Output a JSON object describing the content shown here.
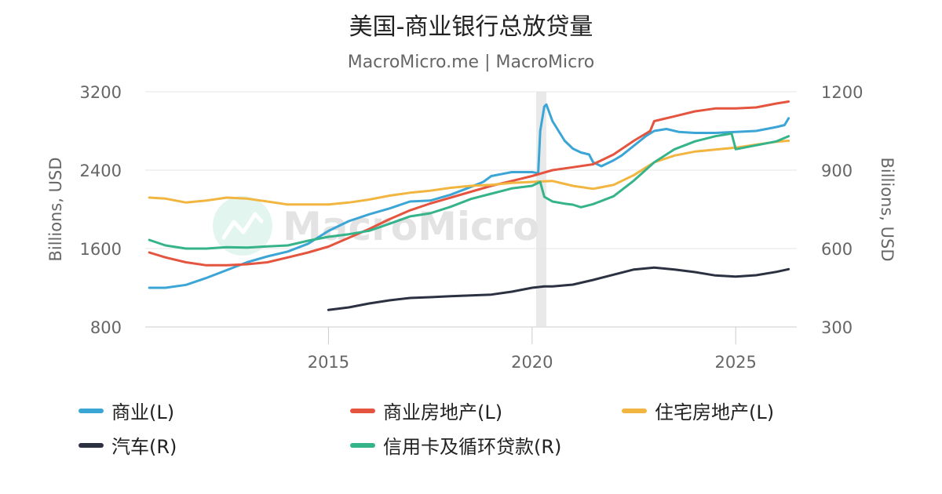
{
  "chart_data": {
    "type": "line",
    "title": "美国-商业银行总放贷量",
    "subtitle": "MacroMicro.me | MacroMicro",
    "watermark": "MacroMicro",
    "left_axis": {
      "label": "Billions, USD",
      "ticks": [
        800,
        1600,
        2400,
        3200
      ],
      "range": [
        800,
        3200
      ]
    },
    "right_axis": {
      "label": "Billions, USD",
      "ticks": [
        300,
        600,
        900,
        1200
      ],
      "range": [
        300,
        1200
      ]
    },
    "x_axis": {
      "ticks": [
        2015,
        2020,
        2025
      ],
      "range": [
        2010.5,
        2026.5
      ]
    },
    "recession_band": [
      2020.1,
      2020.35
    ],
    "series": [
      {
        "name": "商业(L)",
        "axis": "left",
        "color": "#3ba5d6",
        "points": [
          [
            2010.6,
            1200
          ],
          [
            2011.0,
            1200
          ],
          [
            2011.5,
            1230
          ],
          [
            2012.0,
            1300
          ],
          [
            2012.5,
            1380
          ],
          [
            2013.0,
            1460
          ],
          [
            2013.5,
            1520
          ],
          [
            2014.0,
            1570
          ],
          [
            2014.5,
            1650
          ],
          [
            2015.0,
            1780
          ],
          [
            2015.5,
            1880
          ],
          [
            2016.0,
            1950
          ],
          [
            2016.5,
            2010
          ],
          [
            2017.0,
            2080
          ],
          [
            2017.5,
            2090
          ],
          [
            2018.0,
            2150
          ],
          [
            2018.5,
            2230
          ],
          [
            2018.8,
            2280
          ],
          [
            2019.0,
            2340
          ],
          [
            2019.5,
            2380
          ],
          [
            2020.0,
            2380
          ],
          [
            2020.15,
            2370
          ],
          [
            2020.2,
            2800
          ],
          [
            2020.3,
            3050
          ],
          [
            2020.35,
            3070
          ],
          [
            2020.5,
            2900
          ],
          [
            2020.8,
            2700
          ],
          [
            2021.0,
            2620
          ],
          [
            2021.2,
            2580
          ],
          [
            2021.4,
            2560
          ],
          [
            2021.5,
            2480
          ],
          [
            2021.7,
            2440
          ],
          [
            2022.0,
            2500
          ],
          [
            2022.2,
            2550
          ],
          [
            2022.5,
            2650
          ],
          [
            2022.8,
            2750
          ],
          [
            2023.0,
            2800
          ],
          [
            2023.3,
            2820
          ],
          [
            2023.6,
            2790
          ],
          [
            2024.0,
            2780
          ],
          [
            2024.5,
            2780
          ],
          [
            2025.0,
            2790
          ],
          [
            2025.5,
            2800
          ],
          [
            2026.0,
            2840
          ],
          [
            2026.2,
            2860
          ],
          [
            2026.3,
            2930
          ]
        ]
      },
      {
        "name": "商业房地产(L)",
        "axis": "left",
        "color": "#e4543e",
        "points": [
          [
            2010.6,
            1560
          ],
          [
            2011.0,
            1510
          ],
          [
            2011.5,
            1460
          ],
          [
            2012.0,
            1430
          ],
          [
            2012.5,
            1430
          ],
          [
            2013.0,
            1440
          ],
          [
            2013.5,
            1460
          ],
          [
            2014.0,
            1510
          ],
          [
            2014.5,
            1560
          ],
          [
            2015.0,
            1620
          ],
          [
            2015.5,
            1710
          ],
          [
            2016.0,
            1800
          ],
          [
            2016.5,
            1900
          ],
          [
            2017.0,
            1990
          ],
          [
            2017.5,
            2060
          ],
          [
            2018.0,
            2120
          ],
          [
            2018.5,
            2180
          ],
          [
            2019.0,
            2240
          ],
          [
            2019.5,
            2290
          ],
          [
            2020.0,
            2340
          ],
          [
            2020.5,
            2400
          ],
          [
            2021.0,
            2430
          ],
          [
            2021.5,
            2460
          ],
          [
            2022.0,
            2560
          ],
          [
            2022.5,
            2700
          ],
          [
            2022.9,
            2800
          ],
          [
            2023.0,
            2900
          ],
          [
            2023.2,
            2920
          ],
          [
            2023.5,
            2950
          ],
          [
            2024.0,
            3000
          ],
          [
            2024.5,
            3030
          ],
          [
            2025.0,
            3030
          ],
          [
            2025.5,
            3040
          ],
          [
            2026.0,
            3080
          ],
          [
            2026.3,
            3100
          ]
        ]
      },
      {
        "name": "住宅房地产(L)",
        "axis": "left",
        "color": "#f1b540",
        "points": [
          [
            2010.6,
            2120
          ],
          [
            2011.0,
            2110
          ],
          [
            2011.5,
            2070
          ],
          [
            2012.0,
            2090
          ],
          [
            2012.5,
            2120
          ],
          [
            2013.0,
            2110
          ],
          [
            2013.5,
            2080
          ],
          [
            2014.0,
            2050
          ],
          [
            2014.5,
            2050
          ],
          [
            2015.0,
            2050
          ],
          [
            2015.5,
            2070
          ],
          [
            2016.0,
            2100
          ],
          [
            2016.5,
            2140
          ],
          [
            2017.0,
            2170
          ],
          [
            2017.5,
            2190
          ],
          [
            2018.0,
            2220
          ],
          [
            2018.5,
            2240
          ],
          [
            2019.0,
            2250
          ],
          [
            2019.5,
            2270
          ],
          [
            2020.0,
            2280
          ],
          [
            2020.5,
            2290
          ],
          [
            2021.0,
            2240
          ],
          [
            2021.5,
            2210
          ],
          [
            2022.0,
            2250
          ],
          [
            2022.5,
            2350
          ],
          [
            2023.0,
            2480
          ],
          [
            2023.5,
            2550
          ],
          [
            2024.0,
            2590
          ],
          [
            2024.5,
            2610
          ],
          [
            2025.0,
            2630
          ],
          [
            2025.5,
            2660
          ],
          [
            2026.0,
            2690
          ],
          [
            2026.3,
            2700
          ]
        ]
      },
      {
        "name": "汽车(R)",
        "axis": "right",
        "color": "#2c3142",
        "points": [
          [
            2015.0,
            365
          ],
          [
            2015.5,
            375
          ],
          [
            2016.0,
            390
          ],
          [
            2016.5,
            402
          ],
          [
            2017.0,
            411
          ],
          [
            2017.5,
            414
          ],
          [
            2018.0,
            418
          ],
          [
            2018.5,
            421
          ],
          [
            2019.0,
            424
          ],
          [
            2019.5,
            435
          ],
          [
            2020.0,
            450
          ],
          [
            2020.3,
            455
          ],
          [
            2020.5,
            455
          ],
          [
            2021.0,
            462
          ],
          [
            2021.5,
            480
          ],
          [
            2022.0,
            500
          ],
          [
            2022.5,
            520
          ],
          [
            2023.0,
            527
          ],
          [
            2023.5,
            520
          ],
          [
            2024.0,
            510
          ],
          [
            2024.5,
            497
          ],
          [
            2025.0,
            493
          ],
          [
            2025.5,
            498
          ],
          [
            2026.0,
            511
          ],
          [
            2026.3,
            521
          ]
        ]
      },
      {
        "name": "信用卡及循环贷款(R)",
        "axis": "right",
        "color": "#35b38a",
        "points": [
          [
            2010.6,
            633
          ],
          [
            2011.0,
            612
          ],
          [
            2011.5,
            600
          ],
          [
            2012.0,
            600
          ],
          [
            2012.5,
            605
          ],
          [
            2013.0,
            604
          ],
          [
            2013.5,
            608
          ],
          [
            2014.0,
            612
          ],
          [
            2014.5,
            630
          ],
          [
            2015.0,
            645
          ],
          [
            2015.5,
            655
          ],
          [
            2016.0,
            668
          ],
          [
            2016.5,
            695
          ],
          [
            2017.0,
            723
          ],
          [
            2017.5,
            735
          ],
          [
            2018.0,
            760
          ],
          [
            2018.5,
            790
          ],
          [
            2019.0,
            810
          ],
          [
            2019.5,
            830
          ],
          [
            2020.0,
            840
          ],
          [
            2020.2,
            855
          ],
          [
            2020.3,
            798
          ],
          [
            2020.5,
            780
          ],
          [
            2020.8,
            772
          ],
          [
            2021.0,
            768
          ],
          [
            2021.2,
            758
          ],
          [
            2021.5,
            770
          ],
          [
            2022.0,
            800
          ],
          [
            2022.5,
            860
          ],
          [
            2023.0,
            930
          ],
          [
            2023.5,
            980
          ],
          [
            2024.0,
            1010
          ],
          [
            2024.5,
            1030
          ],
          [
            2024.9,
            1040
          ],
          [
            2025.0,
            980
          ],
          [
            2025.5,
            995
          ],
          [
            2026.0,
            1010
          ],
          [
            2026.3,
            1030
          ]
        ]
      }
    ]
  }
}
